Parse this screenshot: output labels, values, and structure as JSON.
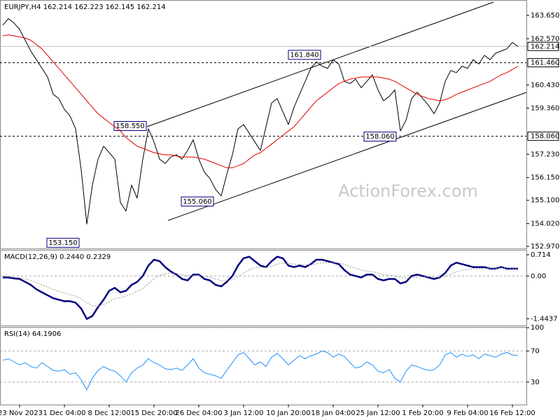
{
  "chart_data": [
    {
      "type": "line",
      "title": "EURJPY,H4  162.214 162.223 162.145 162.214",
      "watermark": "ActionForex.com",
      "categories": [
        null,
        null,
        null,
        "23 Nov 2023",
        null,
        null,
        null,
        null,
        null,
        null,
        null,
        "1 Dec 04:00",
        null,
        null,
        null,
        null,
        null,
        null,
        null,
        "8 Dec 12:00",
        null,
        null,
        null,
        null,
        null,
        null,
        null,
        "15 Dec 20:00",
        null,
        null,
        null,
        null,
        null,
        null,
        null,
        "26 Dec 04:00",
        null,
        null,
        null,
        null,
        null,
        null,
        null,
        "3 Jan 12:00",
        null,
        null,
        null,
        null,
        null,
        null,
        null,
        "10 Jan 20:00",
        null,
        null,
        null,
        null,
        null,
        null,
        null,
        "18 Jan 04:00",
        null,
        null,
        null,
        null,
        null,
        null,
        null,
        "25 Jan 12:00",
        null,
        null,
        null,
        null,
        null,
        null,
        null,
        "1 Feb 20:00",
        null,
        null,
        null,
        null,
        null,
        null,
        null,
        "9 Feb 04:00",
        null,
        null,
        null,
        null,
        null,
        null,
        null,
        "16 Feb 12:00",
        null
      ],
      "ylim": [
        152.87,
        164.36
      ],
      "yticks": [
        {
          "value": 163.65,
          "label": "163.650"
        },
        {
          "value": 162.57,
          "label": "162.570"
        },
        {
          "value": 160.43,
          "label": "160.430"
        },
        {
          "value": 159.36,
          "label": "159.360"
        },
        {
          "value": 157.23,
          "label": "157.230"
        },
        {
          "value": 156.15,
          "label": "156.150"
        },
        {
          "value": 155.1,
          "label": "155.100"
        },
        {
          "value": 154.02,
          "label": "154.020"
        },
        {
          "value": 152.97,
          "label": "152.970"
        }
      ],
      "grid": false,
      "levels": [
        {
          "value": 161.46,
          "label": "161.460"
        },
        {
          "value": 158.06,
          "label": "158.060"
        }
      ],
      "current_price": {
        "value": 162.214,
        "label": "162.214"
      },
      "annotations": [
        {
          "value": 161.84,
          "label": "161.840"
        },
        {
          "value": 158.55,
          "label": "158.550"
        },
        {
          "value": 155.06,
          "label": "155.060"
        },
        {
          "value": 153.15,
          "label": "153.150"
        },
        {
          "value": 158.06,
          "label": "158.060"
        }
      ],
      "series": [
        {
          "color": "#000000",
          "values": [
            163.2,
            163.5,
            163.3,
            163.0,
            162.5,
            162.0,
            161.6,
            161.2,
            160.8,
            160.0,
            159.8,
            159.3,
            159.0,
            158.4,
            156.5,
            154.0,
            155.8,
            157.0,
            157.6,
            157.3,
            157.0,
            155.0,
            154.6,
            155.8,
            155.2,
            157.0,
            158.4,
            157.8,
            157.0,
            156.8,
            157.1,
            157.2,
            157.0,
            157.4,
            157.9,
            157.0,
            156.4,
            156.1,
            155.6,
            155.3,
            156.3,
            157.2,
            158.4,
            158.6,
            158.2,
            157.8,
            157.4,
            158.5,
            159.6,
            159.8,
            159.2,
            158.6,
            159.4,
            160.0,
            160.6,
            161.2,
            161.5,
            161.3,
            161.2,
            161.6,
            161.4,
            160.6,
            160.5,
            160.7,
            160.3,
            160.6,
            160.9,
            160.2,
            159.7,
            159.9,
            160.2,
            158.3,
            158.8,
            159.8,
            160.1,
            159.8,
            159.5,
            159.1,
            159.6,
            160.6,
            161.1,
            161.0,
            161.3,
            161.2,
            161.6,
            161.4,
            161.8,
            161.6,
            161.9,
            162.0,
            162.1,
            162.4,
            162.214
          ]
        },
        {
          "color": "#e00000",
          "values": [
            162.7,
            162.75,
            162.7,
            162.65,
            162.6,
            162.5,
            162.3,
            162.1,
            161.8,
            161.5,
            161.2,
            160.9,
            160.6,
            160.3,
            160.0,
            159.7,
            159.4,
            159.1,
            158.9,
            158.7,
            158.5,
            158.3,
            158.0,
            157.8,
            157.6,
            157.5,
            157.4,
            157.3,
            157.25,
            157.2,
            157.2,
            157.15,
            157.1,
            157.1,
            157.1,
            157.05,
            157.0,
            156.9,
            156.8,
            156.7,
            156.6,
            156.6,
            156.7,
            156.8,
            157.0,
            157.2,
            157.3,
            157.5,
            157.7,
            157.9,
            158.1,
            158.3,
            158.5,
            158.8,
            159.1,
            159.4,
            159.7,
            159.9,
            160.1,
            160.3,
            160.5,
            160.6,
            160.7,
            160.75,
            160.8,
            160.8,
            160.8,
            160.8,
            160.75,
            160.7,
            160.6,
            160.45,
            160.3,
            160.15,
            160.0,
            159.9,
            159.8,
            159.75,
            159.7,
            159.75,
            159.85,
            160.0,
            160.1,
            160.2,
            160.3,
            160.4,
            160.5,
            160.6,
            160.75,
            160.9,
            161.0,
            161.15,
            161.3
          ]
        }
      ]
    },
    {
      "type": "line",
      "title": "MACD(12,26,9) 0.2440 0.2329",
      "ylim": [
        -1.67,
        0.88
      ],
      "yticks": [
        {
          "value": 0.714,
          "label": "0.714"
        },
        {
          "value": 0,
          "label": "0.00"
        },
        {
          "value": -1.4437,
          "label": "-1.4437"
        }
      ],
      "grid": false,
      "series": [
        {
          "color": "#000080",
          "values": [
            -0.05,
            -0.05,
            -0.08,
            -0.1,
            -0.2,
            -0.3,
            -0.45,
            -0.55,
            -0.65,
            -0.75,
            -0.8,
            -0.85,
            -0.85,
            -0.9,
            -1.1,
            -1.45,
            -1.35,
            -1.05,
            -0.8,
            -0.5,
            -0.4,
            -0.55,
            -0.5,
            -0.3,
            -0.2,
            0.0,
            0.35,
            0.55,
            0.5,
            0.3,
            0.15,
            0.05,
            -0.1,
            -0.15,
            0.05,
            0.05,
            -0.1,
            -0.15,
            -0.3,
            -0.35,
            -0.2,
            0.0,
            0.35,
            0.6,
            0.65,
            0.5,
            0.35,
            0.3,
            0.5,
            0.65,
            0.6,
            0.35,
            0.3,
            0.35,
            0.3,
            0.4,
            0.55,
            0.55,
            0.5,
            0.45,
            0.4,
            0.2,
            0.05,
            0.0,
            -0.05,
            0.05,
            0.05,
            -0.1,
            -0.15,
            -0.1,
            -0.1,
            -0.25,
            -0.2,
            0.0,
            0.05,
            0.0,
            -0.05,
            -0.1,
            -0.05,
            0.1,
            0.35,
            0.45,
            0.4,
            0.35,
            0.3,
            0.3,
            0.3,
            0.25,
            0.25,
            0.3,
            0.25,
            0.25,
            0.244
          ]
        },
        {
          "color": "#999999",
          "values": [
            0.0,
            -0.02,
            -0.04,
            -0.06,
            -0.1,
            -0.15,
            -0.22,
            -0.3,
            -0.38,
            -0.45,
            -0.52,
            -0.58,
            -0.63,
            -0.68,
            -0.76,
            -0.9,
            -1.0,
            -1.0,
            -0.96,
            -0.87,
            -0.77,
            -0.73,
            -0.68,
            -0.6,
            -0.52,
            -0.42,
            -0.27,
            -0.1,
            0.02,
            0.08,
            0.1,
            0.09,
            0.05,
            0.01,
            0.02,
            0.02,
            -0.01,
            -0.04,
            -0.1,
            -0.15,
            -0.16,
            -0.13,
            -0.03,
            0.1,
            0.21,
            0.27,
            0.29,
            0.29,
            0.33,
            0.4,
            0.44,
            0.42,
            0.4,
            0.39,
            0.37,
            0.38,
            0.41,
            0.44,
            0.45,
            0.45,
            0.44,
            0.39,
            0.32,
            0.26,
            0.2,
            0.17,
            0.15,
            0.1,
            0.05,
            0.02,
            0.0,
            -0.05,
            -0.08,
            -0.06,
            -0.04,
            -0.03,
            -0.03,
            -0.04,
            -0.04,
            -0.01,
            0.06,
            0.14,
            0.19,
            0.22,
            0.24,
            0.25,
            0.26,
            0.26,
            0.26,
            0.27,
            0.27,
            0.26,
            0.2329
          ]
        }
      ]
    },
    {
      "type": "line",
      "title": "RSI(14) 64.1906",
      "ylim": [
        1,
        101
      ],
      "yticks": [
        100,
        70,
        30
      ],
      "grid": true,
      "series": [
        {
          "color": "#1e90ff",
          "values": [
            58,
            60,
            56,
            52,
            55,
            50,
            48,
            55,
            50,
            45,
            44,
            46,
            40,
            42,
            33,
            20,
            35,
            45,
            50,
            46,
            44,
            38,
            30,
            42,
            48,
            52,
            60,
            55,
            52,
            47,
            46,
            48,
            45,
            52,
            60,
            48,
            42,
            40,
            38,
            35,
            45,
            55,
            65,
            68,
            60,
            52,
            56,
            50,
            62,
            67,
            60,
            52,
            58,
            64,
            60,
            64,
            66,
            70,
            68,
            62,
            66,
            63,
            55,
            48,
            50,
            56,
            52,
            44,
            42,
            46,
            35,
            30,
            44,
            52,
            50,
            47,
            45,
            46,
            52,
            65,
            68,
            62,
            66,
            63,
            65,
            60,
            66,
            64,
            62,
            66,
            68,
            65,
            64.1906
          ]
        }
      ]
    }
  ]
}
